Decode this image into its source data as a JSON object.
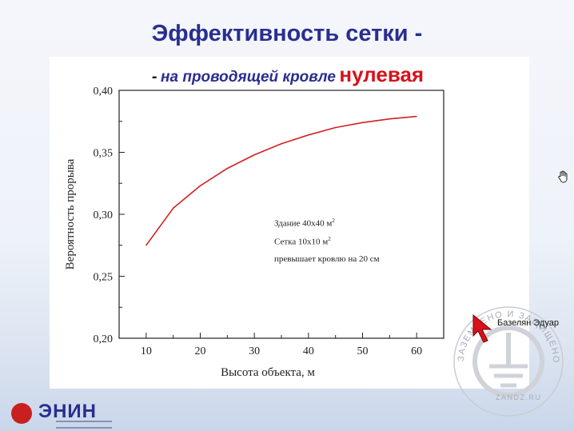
{
  "slide": {
    "title": "Эффективность сетки -",
    "subtitle_dash": "-",
    "subtitle_text": "на проводящей кровле",
    "subtitle_accent": "нулевая"
  },
  "chart_data": {
    "type": "line",
    "xlabel": "Высота объекта,  м",
    "ylabel": "Вероятность прорыва",
    "xlim": [
      5,
      65
    ],
    "ylim": [
      0.2,
      0.4
    ],
    "x_ticks": [
      "10",
      "20",
      "30",
      "40",
      "50",
      "60"
    ],
    "y_ticks": [
      "0,20",
      "0,25",
      "0,30",
      "0,35",
      "0,40"
    ],
    "grid": false,
    "legend": "none",
    "series": [
      {
        "color": "#d32020",
        "x": [
          10,
          15,
          20,
          25,
          30,
          35,
          40,
          45,
          50,
          55,
          60
        ],
        "y": [
          0.275,
          0.305,
          0.323,
          0.337,
          0.348,
          0.357,
          0.364,
          0.37,
          0.374,
          0.377,
          0.379
        ]
      }
    ],
    "annotations": {
      "line1": "Здание 40x40 м",
      "line1_sup": "2",
      "line2": "Сетка 10x10 м",
      "line2_sup": "2",
      "line3": "превышает кровлю на 20 см"
    }
  },
  "logo": {
    "name": "ЭНИН"
  },
  "presenter": {
    "name": "Базелян Эдуар"
  },
  "watermark": {
    "text": "ЗАЗЕМЛЕНО И ЗАЩИЩЕНО",
    "site": "ZANDZ.RU"
  },
  "colors": {
    "title": "#2a2e8f",
    "accent": "#d8111a",
    "curve": "#d32020"
  },
  "icons": {
    "cursor": "hand-cursor-icon",
    "pointer": "red-arrow-pointer-icon",
    "logo": "enin-logo-icon"
  }
}
